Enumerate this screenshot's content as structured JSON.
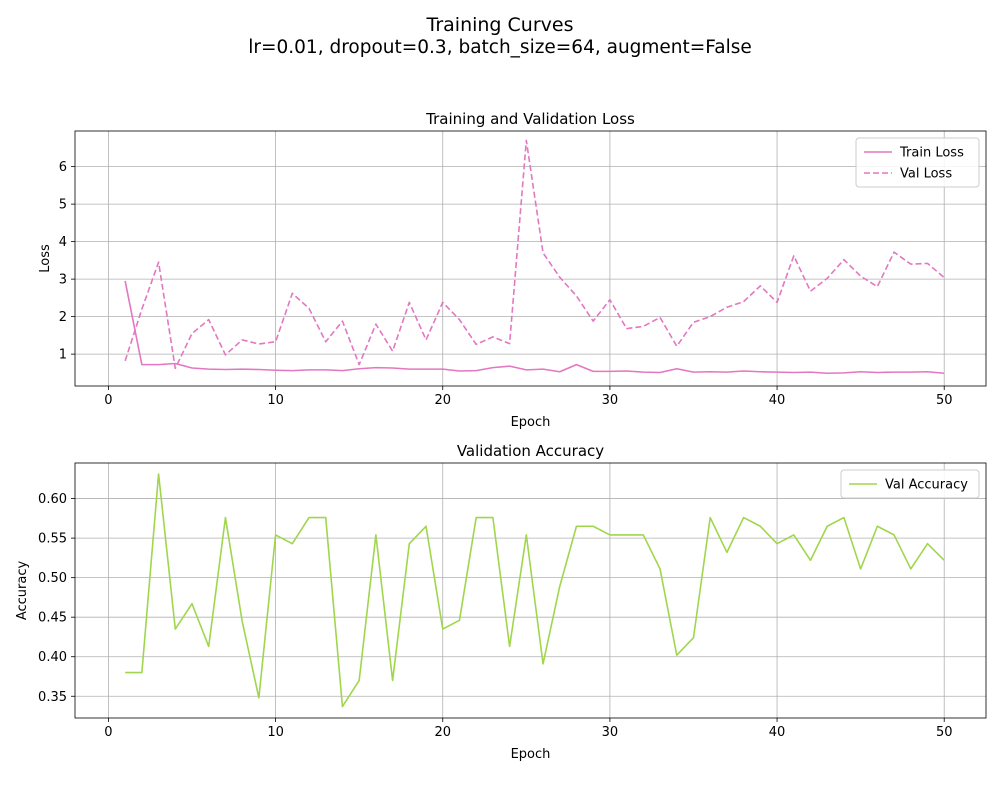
{
  "figure": {
    "title": "Training Curves",
    "subtitle": "lr=0.01, dropout=0.3, batch_size=64, augment=False"
  },
  "chart_data": [
    {
      "type": "line",
      "title": "Training and Validation Loss",
      "xlabel": "Epoch",
      "ylabel": "Loss",
      "xlim": [
        -2,
        52.5
      ],
      "ylim": [
        0.15,
        6.95
      ],
      "xticks": [
        0,
        10,
        20,
        30,
        40,
        50
      ],
      "yticks": [
        1,
        2,
        3,
        4,
        5,
        6
      ],
      "grid": true,
      "legend": "top-right",
      "x": [
        1,
        2,
        3,
        4,
        5,
        6,
        7,
        8,
        9,
        10,
        11,
        12,
        13,
        14,
        15,
        16,
        17,
        18,
        19,
        20,
        21,
        22,
        23,
        24,
        25,
        26,
        27,
        28,
        29,
        30,
        31,
        32,
        33,
        34,
        35,
        36,
        37,
        38,
        39,
        40,
        41,
        42,
        43,
        44,
        45,
        46,
        47,
        48,
        49,
        50
      ],
      "series": [
        {
          "name": "Train Loss",
          "color": "#e377c2",
          "style": "solid",
          "values": [
            2.95,
            0.72,
            0.72,
            0.75,
            0.63,
            0.6,
            0.59,
            0.6,
            0.59,
            0.57,
            0.56,
            0.58,
            0.58,
            0.56,
            0.61,
            0.64,
            0.63,
            0.6,
            0.6,
            0.6,
            0.55,
            0.56,
            0.64,
            0.68,
            0.58,
            0.6,
            0.53,
            0.72,
            0.54,
            0.54,
            0.55,
            0.52,
            0.51,
            0.61,
            0.52,
            0.53,
            0.52,
            0.55,
            0.53,
            0.52,
            0.51,
            0.52,
            0.49,
            0.5,
            0.53,
            0.51,
            0.52,
            0.52,
            0.53,
            0.49
          ]
        },
        {
          "name": "Val Loss",
          "color": "#e377c2",
          "style": "dashed",
          "values": [
            0.82,
            2.2,
            3.45,
            0.62,
            1.55,
            1.92,
            0.98,
            1.38,
            1.27,
            1.33,
            2.62,
            2.22,
            1.33,
            1.88,
            0.72,
            1.8,
            1.08,
            2.38,
            1.38,
            2.38,
            1.92,
            1.26,
            1.46,
            1.28,
            6.7,
            3.7,
            3.05,
            2.55,
            1.88,
            2.45,
            1.68,
            1.74,
            1.98,
            1.21,
            1.85,
            2.0,
            2.25,
            2.4,
            2.82,
            2.38,
            3.62,
            2.68,
            3.02,
            3.52,
            3.08,
            2.8,
            3.72,
            3.4,
            3.42,
            3.04
          ]
        }
      ]
    },
    {
      "type": "line",
      "title": "Validation Accuracy",
      "xlabel": "Epoch",
      "ylabel": "Accuracy",
      "xlim": [
        -2,
        52.5
      ],
      "ylim": [
        0.3225,
        0.645
      ],
      "xticks": [
        0,
        10,
        20,
        30,
        40,
        50
      ],
      "yticks": [
        0.35,
        0.4,
        0.45,
        0.5,
        0.55,
        0.6
      ],
      "ytick_format": "2dp",
      "grid": true,
      "legend": "top-right",
      "x": [
        1,
        2,
        3,
        4,
        5,
        6,
        7,
        8,
        9,
        10,
        11,
        12,
        13,
        14,
        15,
        16,
        17,
        18,
        19,
        20,
        21,
        22,
        23,
        24,
        25,
        26,
        27,
        28,
        29,
        30,
        31,
        32,
        33,
        34,
        35,
        36,
        37,
        38,
        39,
        40,
        41,
        42,
        43,
        44,
        45,
        46,
        47,
        48,
        49,
        50
      ],
      "series": [
        {
          "name": "Val Accuracy",
          "color": "#a0d64c",
          "style": "solid",
          "values": [
            0.38,
            0.38,
            0.631,
            0.435,
            0.467,
            0.413,
            0.576,
            0.445,
            0.348,
            0.554,
            0.543,
            0.576,
            0.576,
            0.337,
            0.37,
            0.554,
            0.37,
            0.543,
            0.565,
            0.435,
            0.446,
            0.576,
            0.576,
            0.413,
            0.554,
            0.391,
            0.489,
            0.565,
            0.565,
            0.554,
            0.554,
            0.554,
            0.511,
            0.402,
            0.424,
            0.576,
            0.532,
            0.576,
            0.565,
            0.543,
            0.554,
            0.522,
            0.565,
            0.576,
            0.511,
            0.565,
            0.554,
            0.511,
            0.543,
            0.522
          ]
        }
      ]
    }
  ]
}
